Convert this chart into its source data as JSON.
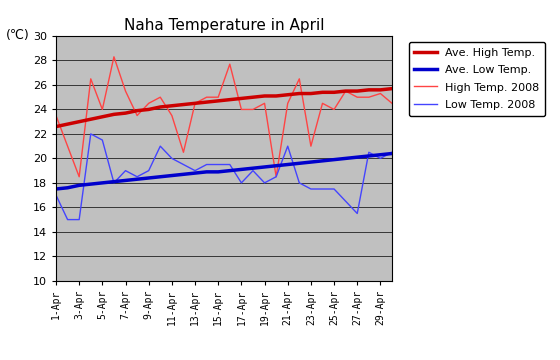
{
  "title": "Naha Temperature in April",
  "ylabel": "(℃)",
  "ylim": [
    10,
    30
  ],
  "yticks": [
    10,
    12,
    14,
    16,
    18,
    20,
    22,
    24,
    26,
    28,
    30
  ],
  "days": [
    1,
    2,
    3,
    4,
    5,
    6,
    7,
    8,
    9,
    10,
    11,
    12,
    13,
    14,
    15,
    16,
    17,
    18,
    19,
    20,
    21,
    22,
    23,
    24,
    25,
    26,
    27,
    28,
    29,
    30
  ],
  "xtick_labels": [
    "1-Apr",
    "3-Apr",
    "5-Apr",
    "7-Apr",
    "9-Apr",
    "11-Apr",
    "13-Apr",
    "15-Apr",
    "17-Apr",
    "19-Apr",
    "21-Apr",
    "23-Apr",
    "25-Apr",
    "27-Apr",
    "29-Apr"
  ],
  "xtick_positions": [
    1,
    3,
    5,
    7,
    9,
    11,
    13,
    15,
    17,
    19,
    21,
    23,
    25,
    27,
    29
  ],
  "ave_high": [
    22.6,
    22.8,
    23.0,
    23.2,
    23.4,
    23.6,
    23.7,
    23.9,
    24.0,
    24.2,
    24.3,
    24.4,
    24.5,
    24.6,
    24.7,
    24.8,
    24.9,
    25.0,
    25.1,
    25.1,
    25.2,
    25.3,
    25.3,
    25.4,
    25.4,
    25.5,
    25.5,
    25.6,
    25.6,
    25.7
  ],
  "ave_low": [
    17.5,
    17.6,
    17.8,
    17.9,
    18.0,
    18.1,
    18.2,
    18.3,
    18.4,
    18.5,
    18.6,
    18.7,
    18.8,
    18.9,
    18.9,
    19.0,
    19.1,
    19.2,
    19.3,
    19.4,
    19.5,
    19.6,
    19.7,
    19.8,
    19.9,
    20.0,
    20.1,
    20.2,
    20.3,
    20.4
  ],
  "high_2008": [
    23.5,
    21.0,
    18.5,
    26.5,
    24.0,
    28.3,
    25.5,
    23.5,
    24.5,
    25.0,
    23.5,
    20.5,
    24.5,
    25.0,
    25.0,
    27.7,
    24.0,
    24.0,
    24.5,
    18.5,
    24.5,
    26.5,
    21.0,
    24.5,
    24.0,
    25.5,
    25.0,
    25.0,
    25.3,
    24.5
  ],
  "low_2008": [
    17.0,
    15.0,
    15.0,
    22.0,
    21.5,
    18.0,
    19.0,
    18.5,
    19.0,
    21.0,
    20.0,
    19.5,
    19.0,
    19.5,
    19.5,
    19.5,
    18.0,
    19.0,
    18.0,
    18.5,
    21.0,
    18.0,
    17.5,
    17.5,
    17.5,
    16.5,
    15.5,
    20.5,
    20.0,
    20.5
  ],
  "ave_high_color": "#cc0000",
  "ave_low_color": "#0000cc",
  "high_2008_color": "#ff4444",
  "low_2008_color": "#4444ff",
  "background_color": "#c0c0c0",
  "figure_color": "#ffffff",
  "ave_high_lw": 2.5,
  "ave_low_lw": 2.5,
  "high_2008_lw": 1.0,
  "low_2008_lw": 1.0,
  "legend_labels": [
    "Ave. High Temp.",
    "Ave. Low Temp.",
    "High Temp. 2008",
    "Low Temp. 2008"
  ]
}
